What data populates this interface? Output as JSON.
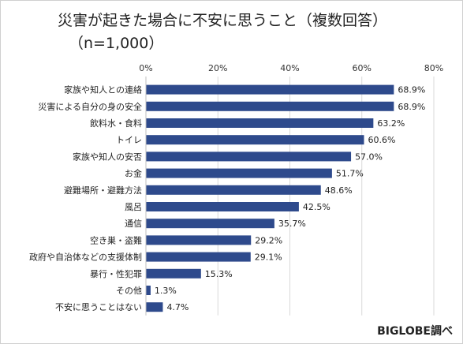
{
  "title": "災害が起きた場合に不安に思うこと（複数回答）",
  "subtitle": "（n=1,000）",
  "source": "BIGLOBE調べ",
  "colors": {
    "bar": "#2e4a8c",
    "grid": "#d9d9d9"
  },
  "chart_data": {
    "type": "bar",
    "orientation": "horizontal",
    "title": "災害が起きた場合に不安に思うこと（複数回答）",
    "subtitle": "（n=1,000）",
    "categories": [
      "家族や知人との連絡",
      "災害による自分の身の安全",
      "飲料水・食料",
      "トイレ",
      "家族や知人の安否",
      "お金",
      "避難場所・避難方法",
      "風呂",
      "通信",
      "空き巣・盗難",
      "政府や自治体などの支援体制",
      "暴行・性犯罪",
      "その他",
      "不安に思うことはない"
    ],
    "values": [
      68.9,
      68.9,
      63.2,
      60.6,
      57.0,
      51.7,
      48.6,
      42.5,
      35.7,
      29.2,
      29.1,
      15.3,
      1.3,
      4.7
    ],
    "value_labels": [
      "68.9%",
      "68.9%",
      "63.2%",
      "60.6%",
      "57.0%",
      "51.7%",
      "48.6%",
      "42.5%",
      "35.7%",
      "29.2%",
      "29.1%",
      "15.3%",
      "1.3%",
      "4.7%"
    ],
    "xlim": [
      0,
      80
    ],
    "ticks": [
      0,
      20,
      40,
      60,
      80
    ],
    "tick_labels": [
      "0%",
      "20%",
      "40%",
      "60%",
      "80%"
    ],
    "grid": true,
    "axis_position": "top"
  }
}
